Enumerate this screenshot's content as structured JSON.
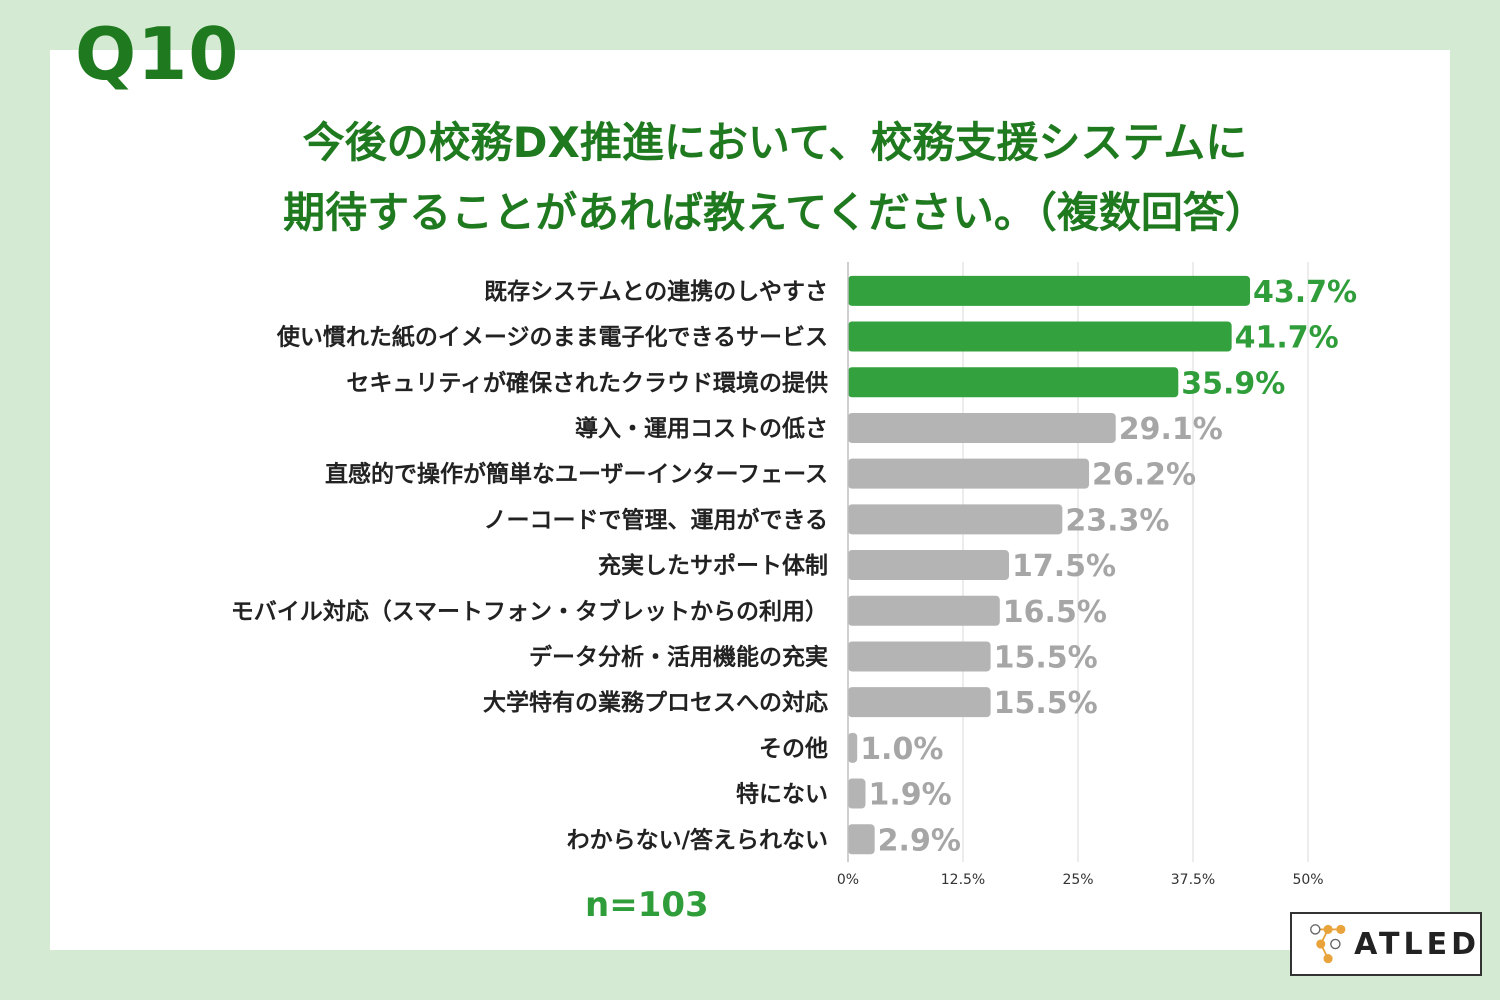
{
  "header": {
    "question_number": "Q10",
    "title_line1": "今後の校務DX推進において、校務支援システムに",
    "title_line2": "期待することがあれば教えてください。（複数回答）"
  },
  "sample": {
    "n_label": "n=103"
  },
  "logo": {
    "text": "ATLED"
  },
  "colors": {
    "highlight": "#33a13d",
    "normal": "#b4b4b4",
    "highlight_text": "#2f9e3a",
    "normal_text": "#a6a6a6"
  },
  "chart_data": {
    "type": "bar",
    "orientation": "horizontal",
    "categories": [
      "既存システムとの連携のしやすさ",
      "使い慣れた紙のイメージのまま電子化できるサービス",
      "セキュリティが確保されたクラウド環境の提供",
      "導入・運用コストの低さ",
      "直感的で操作が簡単なユーザーインターフェース",
      "ノーコードで管理、運用ができる",
      "充実したサポート体制",
      "モバイル対応（スマートフォン・タブレットからの利用）",
      "データ分析・活用機能の充実",
      "大学特有の業務プロセスへの対応",
      "その他",
      "特にない",
      "わからない/答えられない"
    ],
    "values": [
      43.7,
      41.7,
      35.9,
      29.1,
      26.2,
      23.3,
      17.5,
      16.5,
      15.5,
      15.5,
      1.0,
      1.9,
      2.9
    ],
    "value_labels": [
      "43.7%",
      "41.7%",
      "35.9%",
      "29.1%",
      "26.2%",
      "23.3%",
      "17.5%",
      "16.5%",
      "15.5%",
      "15.5%",
      "1.0%",
      "1.9%",
      "2.9%"
    ],
    "highlighted_count": 3,
    "xlim": [
      0,
      50
    ],
    "ticks": [
      0,
      12.5,
      25,
      37.5,
      50
    ],
    "tick_labels": [
      "0%",
      "12.5%",
      "25%",
      "37.5%",
      "50%"
    ],
    "grid": true,
    "title": "今後の校務DX推進において、校務支援システムに期待することがあれば教えてください。（複数回答）",
    "xlabel": "",
    "ylabel": ""
  }
}
